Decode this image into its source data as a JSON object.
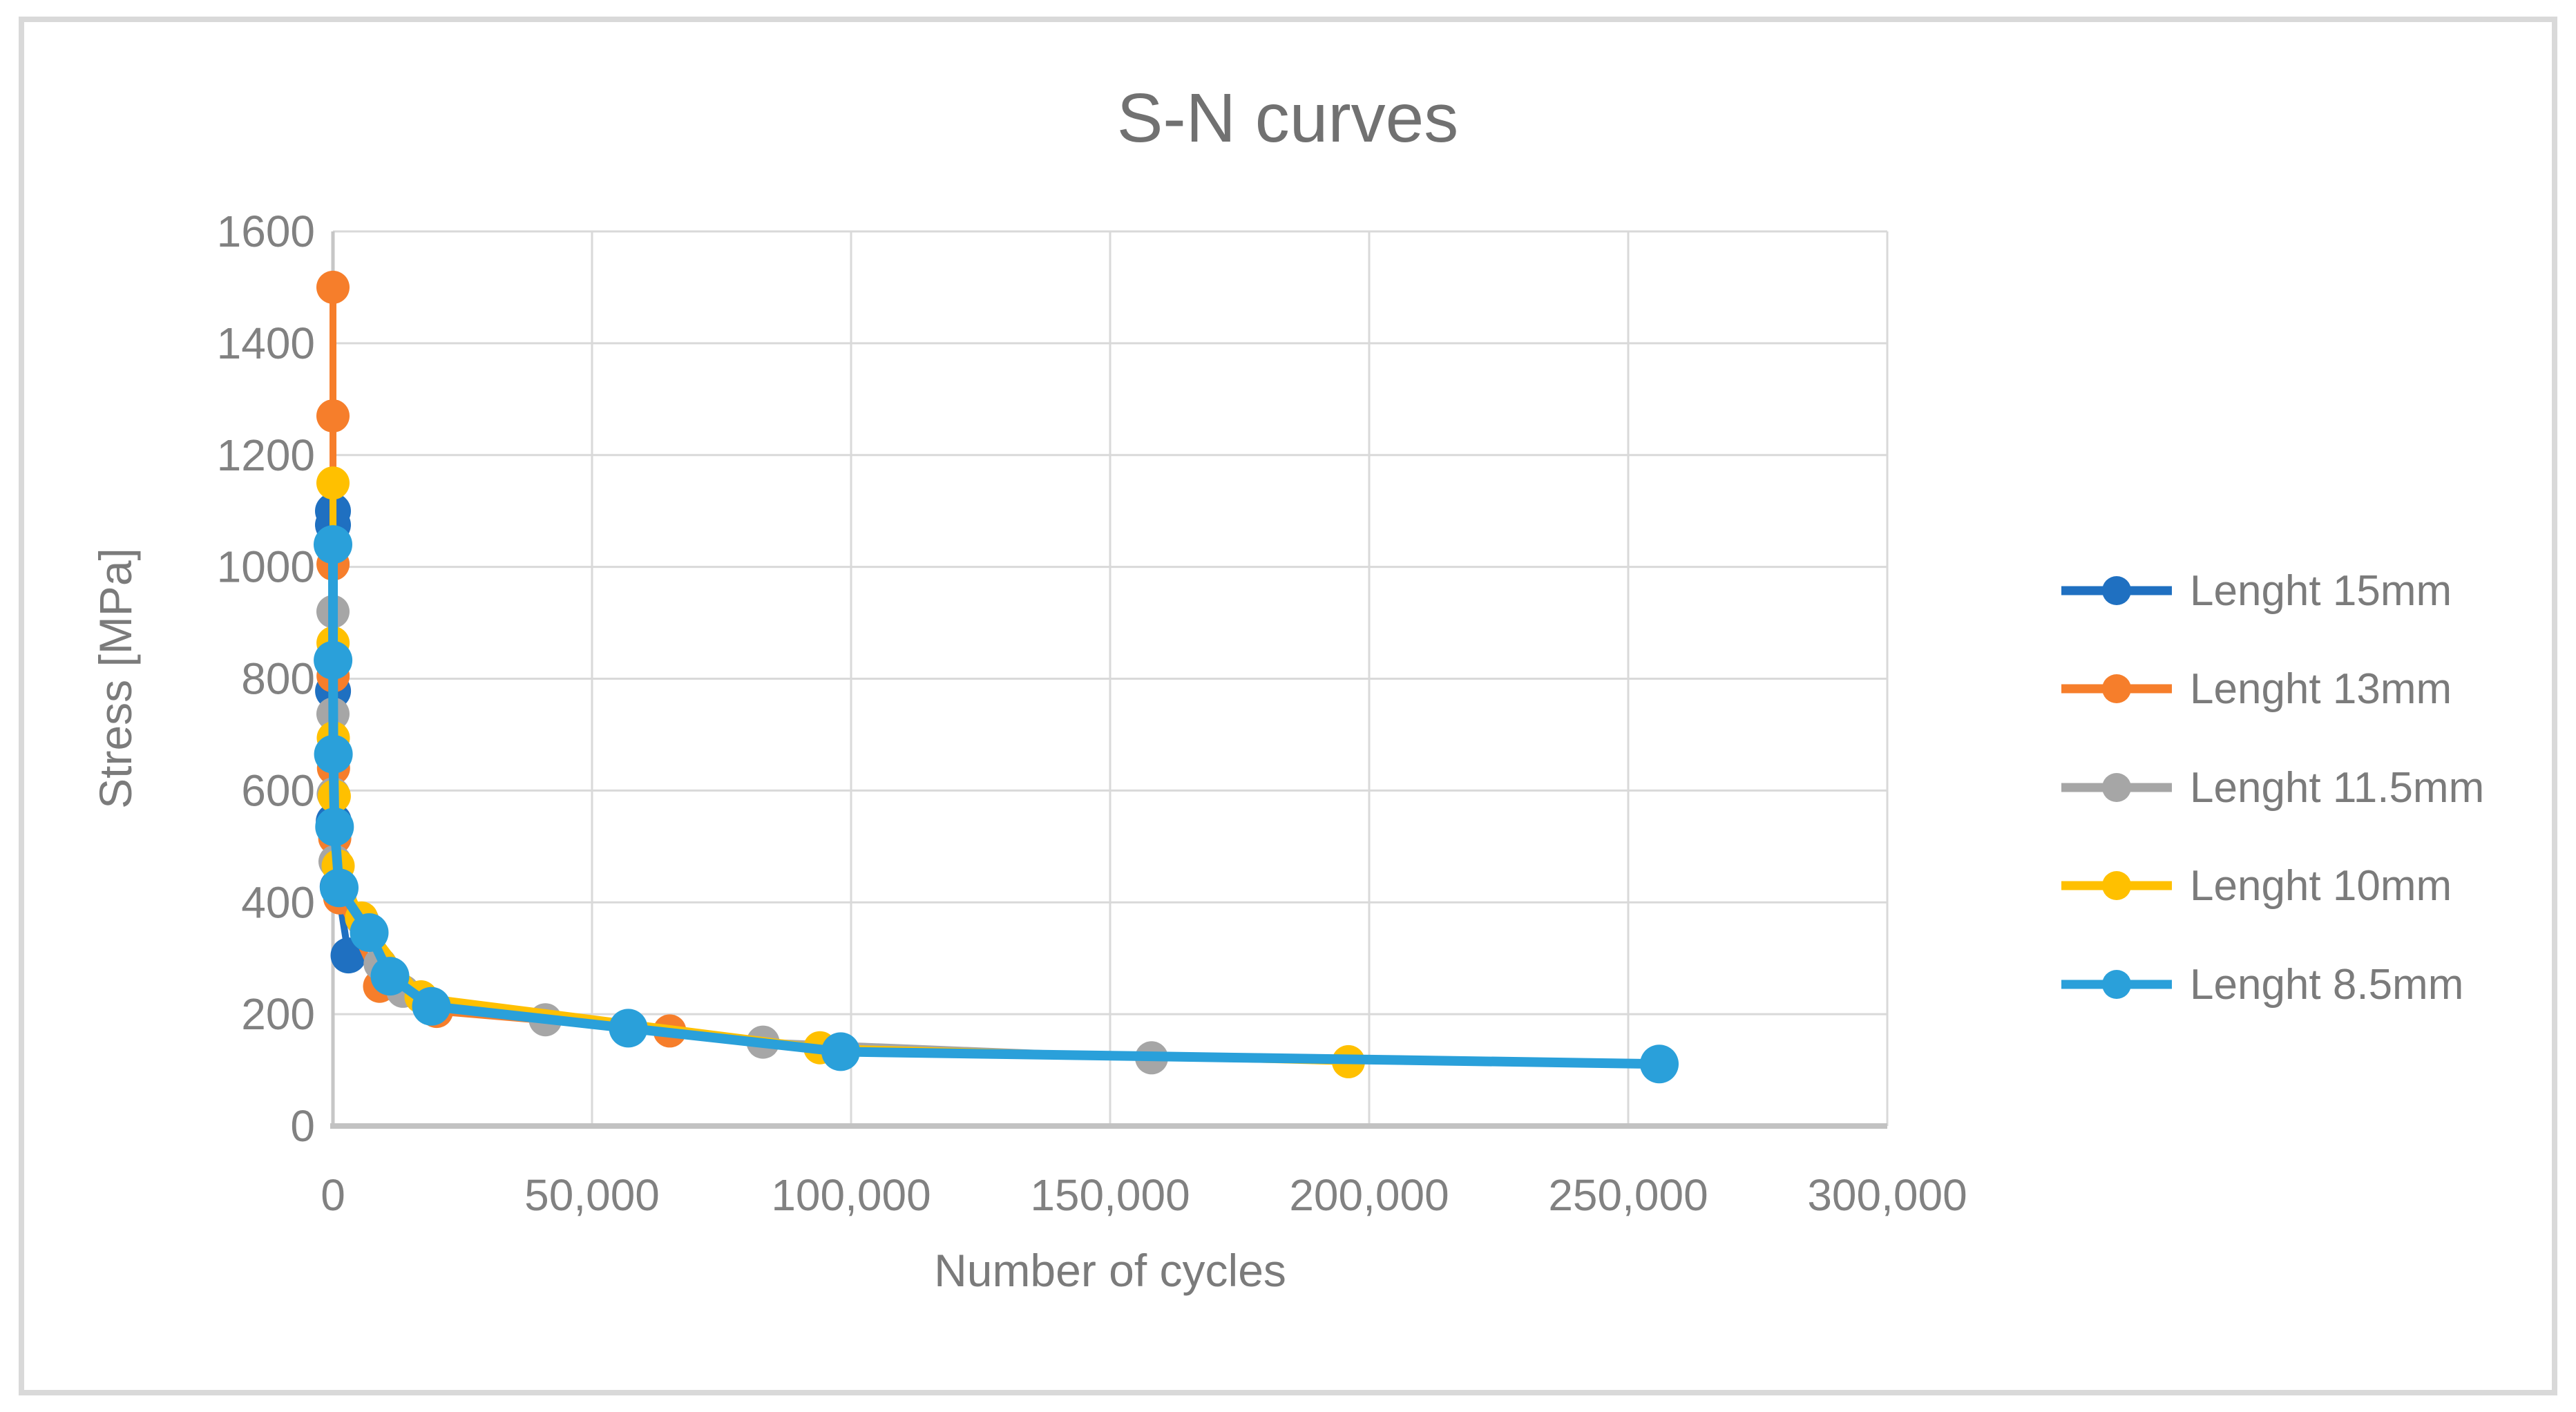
{
  "chart": {
    "title": "S-N curves",
    "x_axis": {
      "label": "Number of cycles",
      "min": 0,
      "max": 300000,
      "tick_step": 50000,
      "tick_labels": [
        "0",
        "50,000",
        "100,000",
        "150,000",
        "200,000",
        "250,000",
        "300,000"
      ]
    },
    "y_axis": {
      "label": "Stress [MPa]",
      "min": 0,
      "max": 1600,
      "tick_step": 200,
      "tick_labels": [
        "0",
        "200",
        "400",
        "600",
        "800",
        "1000",
        "1200",
        "1400",
        "1600"
      ]
    },
    "grid_color": "#D9D9D9",
    "axis_line_color": "#C2C2C2",
    "text_color": "#7B7B7B"
  },
  "chart_data": {
    "type": "line",
    "title": "S-N curves",
    "xlabel": "Number of cycles",
    "ylabel": "Stress [MPa]",
    "xlim": [
      0,
      300000
    ],
    "ylim": [
      0,
      1600
    ],
    "grid": true,
    "legend_position": "right",
    "series": [
      {
        "name": "Lenght 15mm",
        "color": "#1F70C1",
        "points": [
          [
            1,
            1100
          ],
          [
            2,
            1075
          ],
          [
            20,
            778
          ],
          [
            150,
            545
          ],
          [
            900,
            428
          ],
          [
            3000,
            305
          ]
        ]
      },
      {
        "name": "Lenght 13mm",
        "color": "#F67E2B",
        "points": [
          [
            1,
            1500
          ],
          [
            2,
            1270
          ],
          [
            8,
            1005
          ],
          [
            30,
            805
          ],
          [
            100,
            640
          ],
          [
            350,
            515
          ],
          [
            1300,
            408
          ],
          [
            9000,
            250
          ],
          [
            20000,
            205
          ],
          [
            65000,
            170
          ]
        ]
      },
      {
        "name": "Lenght 11.5mm",
        "color": "#A6A6A6",
        "points": [
          [
            1,
            920
          ],
          [
            6,
            737
          ],
          [
            60,
            594
          ],
          [
            400,
            473
          ],
          [
            5700,
            368
          ],
          [
            9100,
            290
          ],
          [
            13500,
            241
          ],
          [
            41000,
            190
          ],
          [
            83000,
            150
          ],
          [
            158000,
            122
          ]
        ]
      },
      {
        "name": "Lenght 10mm",
        "color": "#FFC000",
        "points": [
          [
            2,
            1150
          ],
          [
            10,
            864
          ],
          [
            70,
            694
          ],
          [
            250,
            590
          ],
          [
            1000,
            465
          ],
          [
            5500,
            372
          ],
          [
            17000,
            231
          ],
          [
            94000,
            140
          ],
          [
            196000,
            115
          ]
        ]
      },
      {
        "name": "Lenght 8.5mm",
        "color": "#2AA0DA",
        "points": [
          [
            3,
            1040
          ],
          [
            12,
            833
          ],
          [
            80,
            665
          ],
          [
            300,
            535
          ],
          [
            1200,
            426
          ],
          [
            7000,
            346
          ],
          [
            11000,
            268
          ],
          [
            19000,
            214
          ],
          [
            57000,
            175
          ],
          [
            98000,
            133
          ],
          [
            256000,
            111
          ]
        ]
      }
    ]
  },
  "legend": {
    "items": [
      {
        "label": "Lenght 15mm"
      },
      {
        "label": "Lenght 13mm"
      },
      {
        "label": "Lenght 11.5mm"
      },
      {
        "label": "Lenght 10mm"
      },
      {
        "label": "Lenght 8.5mm"
      }
    ]
  }
}
